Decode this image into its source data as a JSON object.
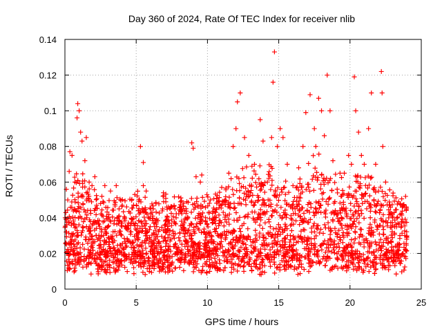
{
  "chart_data": {
    "type": "scatter",
    "title": "Day 360 of 2024, Rate Of TEC Index for receiver nlib",
    "xlabel": "GPS time / hours",
    "ylabel": "ROTI / TECUs",
    "xlim": [
      0,
      25
    ],
    "ylim": [
      0,
      0.14
    ],
    "x_ticks": [
      0,
      5,
      10,
      15,
      20,
      25
    ],
    "x_tick_labels": [
      "0",
      "5",
      "10",
      "15",
      "20",
      "25"
    ],
    "y_ticks": [
      0,
      0.02,
      0.04,
      0.06,
      0.08,
      0.1,
      0.12,
      0.14
    ],
    "y_tick_labels": [
      "0",
      "0.02",
      "0.04",
      "0.06",
      "0.08",
      "0.1",
      "0.12",
      "0.14"
    ],
    "grid": true,
    "marker": "+",
    "color": "#ff0000",
    "series": [
      {
        "name": "ROTI",
        "points": [
          [
            0.1,
            0.056
          ],
          [
            0.2,
            0.05
          ],
          [
            0.3,
            0.066
          ],
          [
            0.35,
            0.077
          ],
          [
            0.5,
            0.075
          ],
          [
            0.7,
            0.06
          ],
          [
            0.85,
            0.096
          ],
          [
            0.9,
            0.104
          ],
          [
            1.0,
            0.1
          ],
          [
            1.1,
            0.088
          ],
          [
            1.2,
            0.083
          ],
          [
            1.4,
            0.072
          ],
          [
            1.5,
            0.085
          ],
          [
            1.7,
            0.06
          ],
          [
            1.9,
            0.058
          ],
          [
            2.1,
            0.063
          ],
          [
            2.5,
            0.048
          ],
          [
            2.8,
            0.058
          ],
          [
            3.2,
            0.055
          ],
          [
            3.6,
            0.058
          ],
          [
            3.8,
            0.045
          ],
          [
            4.2,
            0.04
          ],
          [
            5.3,
            0.08
          ],
          [
            5.5,
            0.058
          ],
          [
            5.7,
            0.055
          ],
          [
            5.5,
            0.071
          ],
          [
            6.2,
            0.045
          ],
          [
            7.0,
            0.036
          ],
          [
            7.8,
            0.04
          ],
          [
            8.2,
            0.045
          ],
          [
            8.9,
            0.082
          ],
          [
            9.0,
            0.079
          ],
          [
            9.2,
            0.063
          ],
          [
            9.5,
            0.06
          ],
          [
            9.6,
            0.064
          ],
          [
            10.2,
            0.05
          ],
          [
            11.0,
            0.057
          ],
          [
            11.5,
            0.065
          ],
          [
            11.8,
            0.08
          ],
          [
            12.0,
            0.09
          ],
          [
            12.1,
            0.105
          ],
          [
            12.3,
            0.11
          ],
          [
            12.6,
            0.085
          ],
          [
            12.9,
            0.075
          ],
          [
            13.3,
            0.07
          ],
          [
            13.7,
            0.095
          ],
          [
            13.9,
            0.083
          ],
          [
            14.2,
            0.06
          ],
          [
            14.5,
            0.085
          ],
          [
            14.6,
            0.116
          ],
          [
            14.7,
            0.133
          ],
          [
            14.9,
            0.08
          ],
          [
            15.1,
            0.09
          ],
          [
            15.3,
            0.085
          ],
          [
            15.6,
            0.07
          ],
          [
            16.0,
            0.058
          ],
          [
            16.4,
            0.068
          ],
          [
            16.7,
            0.08
          ],
          [
            16.9,
            0.099
          ],
          [
            17.2,
            0.109
          ],
          [
            17.5,
            0.09
          ],
          [
            17.6,
            0.08
          ],
          [
            17.8,
            0.107
          ],
          [
            18.0,
            0.1
          ],
          [
            18.2,
            0.086
          ],
          [
            18.4,
            0.12
          ],
          [
            18.6,
            0.1
          ],
          [
            18.8,
            0.072
          ],
          [
            19.3,
            0.065
          ],
          [
            19.6,
            0.065
          ],
          [
            19.9,
            0.075
          ],
          [
            20.1,
            0.07
          ],
          [
            20.4,
            0.1
          ],
          [
            20.3,
            0.119
          ],
          [
            20.6,
            0.088
          ],
          [
            20.8,
            0.075
          ],
          [
            21.0,
            0.07
          ],
          [
            21.3,
            0.09
          ],
          [
            21.5,
            0.11
          ],
          [
            21.8,
            0.07
          ],
          [
            22.0,
            0.055
          ],
          [
            22.2,
            0.122
          ],
          [
            22.25,
            0.11
          ],
          [
            22.3,
            0.08
          ],
          [
            22.5,
            0.06
          ],
          [
            23.0,
            0.04
          ],
          [
            23.5,
            0.03
          ],
          [
            23.9,
            0.052
          ],
          [
            23.95,
            0.046
          ]
        ]
      }
    ]
  }
}
